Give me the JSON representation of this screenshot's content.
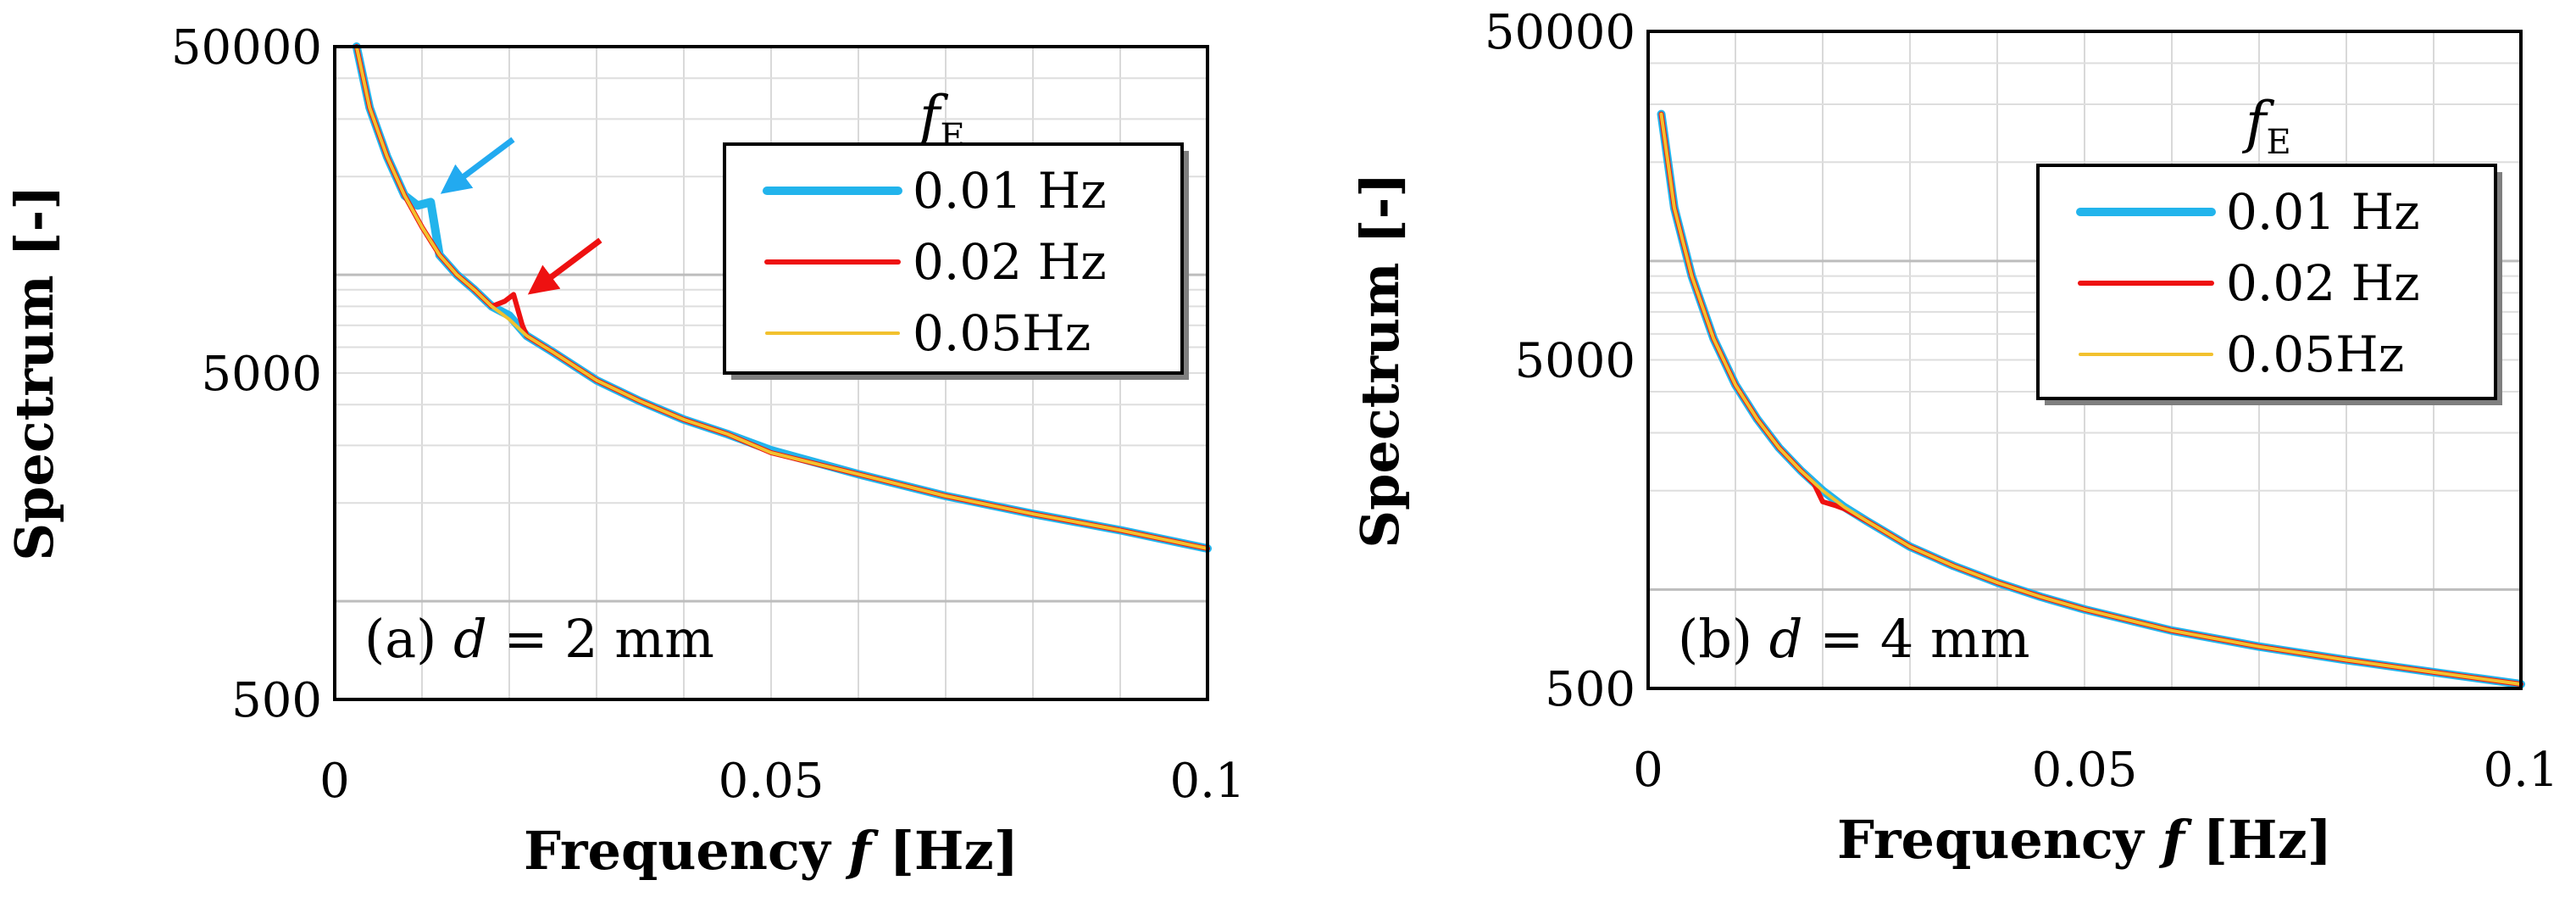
{
  "chart_data": [
    {
      "type": "line",
      "panel": "a",
      "annotation": {
        "prefix": "(a) ",
        "var": "d",
        "suffix": " = 2 mm"
      },
      "xlabel": {
        "prefix": "Frequency ",
        "var": "f",
        "suffix": " [Hz]"
      },
      "ylabel": "Spectrum [-]",
      "xlim": [
        0,
        0.1
      ],
      "ylim": [
        500,
        50000
      ],
      "yscale": "log",
      "xticks": [
        0,
        0.05,
        0.1
      ],
      "xtick_labels": [
        "0",
        "0.05",
        "0.1"
      ],
      "yticks": [
        500,
        5000,
        50000
      ],
      "ytick_labels": [
        "500",
        "5000",
        "50000"
      ],
      "grid": true,
      "legend": {
        "position": "top-right",
        "title": {
          "var": "f",
          "sub": "E"
        },
        "entries": [
          "0.01 Hz",
          "0.02 Hz",
          "0.05Hz"
        ]
      },
      "arrows": [
        {
          "color": "#22aaf0",
          "points_to": [
            0.0115,
            17500
          ]
        },
        {
          "color": "#ee1111",
          "points_to": [
            0.0215,
            8600
          ]
        }
      ],
      "series": [
        {
          "name": "0.01 Hz",
          "color": "#22b4ec",
          "x": [
            0.0025,
            0.004,
            0.006,
            0.008,
            0.0095,
            0.011,
            0.012,
            0.014,
            0.016,
            0.018,
            0.02,
            0.022,
            0.025,
            0.03,
            0.035,
            0.04,
            0.045,
            0.05,
            0.06,
            0.07,
            0.08,
            0.09,
            0.1
          ],
          "y": [
            50000,
            32500,
            23000,
            17500,
            16300,
            16700,
            11500,
            10000,
            9000,
            8000,
            7500,
            6500,
            5800,
            4750,
            4100,
            3600,
            3250,
            2900,
            2450,
            2100,
            1850,
            1650,
            1450
          ]
        },
        {
          "name": "0.02 Hz",
          "color": "#ee1111",
          "x": [
            0.0025,
            0.004,
            0.006,
            0.008,
            0.01,
            0.012,
            0.014,
            0.016,
            0.018,
            0.0195,
            0.0205,
            0.0215,
            0.022,
            0.025,
            0.03,
            0.035,
            0.04,
            0.045,
            0.05,
            0.06,
            0.07,
            0.08,
            0.09,
            0.1
          ],
          "y": [
            50000,
            32500,
            23000,
            17500,
            14000,
            11500,
            10000,
            9000,
            8000,
            8300,
            8700,
            7000,
            6500,
            5800,
            4750,
            4100,
            3600,
            3250,
            2850,
            2450,
            2100,
            1850,
            1650,
            1450
          ]
        },
        {
          "name": "0.05Hz",
          "color": "#f2c12e",
          "x": [
            0.0025,
            0.004,
            0.006,
            0.008,
            0.01,
            0.012,
            0.014,
            0.016,
            0.018,
            0.02,
            0.022,
            0.025,
            0.03,
            0.035,
            0.04,
            0.045,
            0.05,
            0.06,
            0.07,
            0.08,
            0.09,
            0.1
          ],
          "y": [
            50000,
            32500,
            23000,
            17500,
            14000,
            11500,
            10000,
            9000,
            8000,
            7300,
            6500,
            5800,
            4750,
            4100,
            3600,
            3250,
            2850,
            2450,
            2100,
            1850,
            1650,
            1450
          ]
        }
      ]
    },
    {
      "type": "line",
      "panel": "b",
      "annotation": {
        "prefix": "(b) ",
        "var": "d",
        "suffix": " = 4 mm"
      },
      "xlabel": {
        "prefix": "Frequency ",
        "var": "f",
        "suffix": " [Hz]"
      },
      "ylabel": "Spectrum [-]",
      "xlim": [
        0,
        0.1
      ],
      "ylim": [
        500,
        50000
      ],
      "yscale": "log",
      "xticks": [
        0,
        0.05,
        0.1
      ],
      "xtick_labels": [
        "0",
        "0.05",
        "0.1"
      ],
      "yticks": [
        500,
        5000,
        50000
      ],
      "ytick_labels": [
        "500",
        "5000",
        "50000"
      ],
      "grid": true,
      "legend": {
        "position": "top-right",
        "title": {
          "var": "f",
          "sub": "E"
        },
        "entries": [
          "0.01 Hz",
          "0.02 Hz",
          "0.05Hz"
        ]
      },
      "arrows": [],
      "series": [
        {
          "name": "0.01 Hz",
          "color": "#22b4ec",
          "x": [
            0.0015,
            0.003,
            0.005,
            0.0075,
            0.01,
            0.0125,
            0.015,
            0.0175,
            0.02,
            0.0225,
            0.025,
            0.03,
            0.035,
            0.04,
            0.045,
            0.05,
            0.06,
            0.07,
            0.08,
            0.09,
            0.1
          ],
          "y": [
            28000,
            14500,
            9000,
            5800,
            4200,
            3300,
            2700,
            2300,
            2000,
            1780,
            1620,
            1350,
            1180,
            1050,
            950,
            870,
            750,
            670,
            610,
            560,
            515
          ]
        },
        {
          "name": "0.02 Hz",
          "color": "#ee1111",
          "x": [
            0.0015,
            0.003,
            0.005,
            0.0075,
            0.01,
            0.0125,
            0.015,
            0.0175,
            0.019,
            0.02,
            0.0215,
            0.0225,
            0.025,
            0.03,
            0.035,
            0.04,
            0.045,
            0.05,
            0.06,
            0.07,
            0.08,
            0.09,
            0.1
          ],
          "y": [
            28000,
            14500,
            9000,
            5800,
            4200,
            3300,
            2700,
            2300,
            2100,
            1850,
            1800,
            1760,
            1620,
            1350,
            1180,
            1050,
            950,
            870,
            750,
            670,
            610,
            560,
            515
          ]
        },
        {
          "name": "0.05Hz",
          "color": "#f2c12e",
          "x": [
            0.0015,
            0.003,
            0.005,
            0.0075,
            0.01,
            0.0125,
            0.015,
            0.0175,
            0.02,
            0.0225,
            0.025,
            0.03,
            0.035,
            0.04,
            0.045,
            0.05,
            0.06,
            0.07,
            0.08,
            0.09,
            0.1
          ],
          "y": [
            28000,
            14500,
            9000,
            5800,
            4200,
            3300,
            2700,
            2300,
            2000,
            1780,
            1620,
            1350,
            1180,
            1050,
            950,
            870,
            750,
            670,
            610,
            560,
            515
          ]
        }
      ]
    }
  ]
}
